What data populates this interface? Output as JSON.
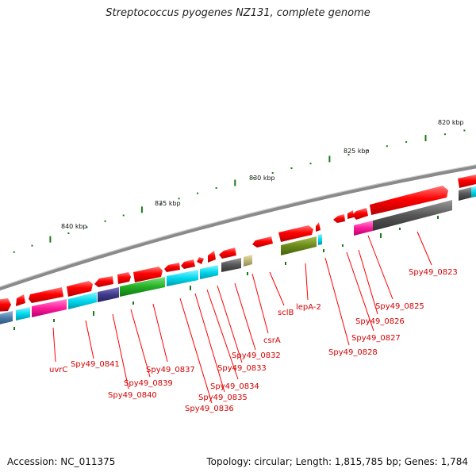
{
  "title": "Streptococcus pyogenes NZ131, complete genome",
  "footer": {
    "accession": "Accession: NC_011375",
    "stats": "Topology: circular; Length: 1,815,785 bp; Genes: 1,784"
  },
  "scale_labels": [
    "820 kbp",
    "825 kbp",
    "830 kbp",
    "835 kbp",
    "840 kbp"
  ],
  "gene_labels": [
    "Spy49_0823",
    "Spy49_0825",
    "Spy49_0826",
    "Spy49_0827",
    "Spy49_0828",
    "lepA-2",
    "sclB",
    "csrA",
    "Spy49_0832",
    "Spy49_0833",
    "Spy49_0834",
    "Spy49_0835",
    "Spy49_0836",
    "Spy49_0837",
    "Spy49_0839",
    "Spy49_0840",
    "Spy49_0841",
    "uvrC"
  ],
  "colors": {
    "cds": "#ff0000",
    "backbone": "#888888",
    "label": "#d40000",
    "tick": "#1a7a1a"
  }
}
